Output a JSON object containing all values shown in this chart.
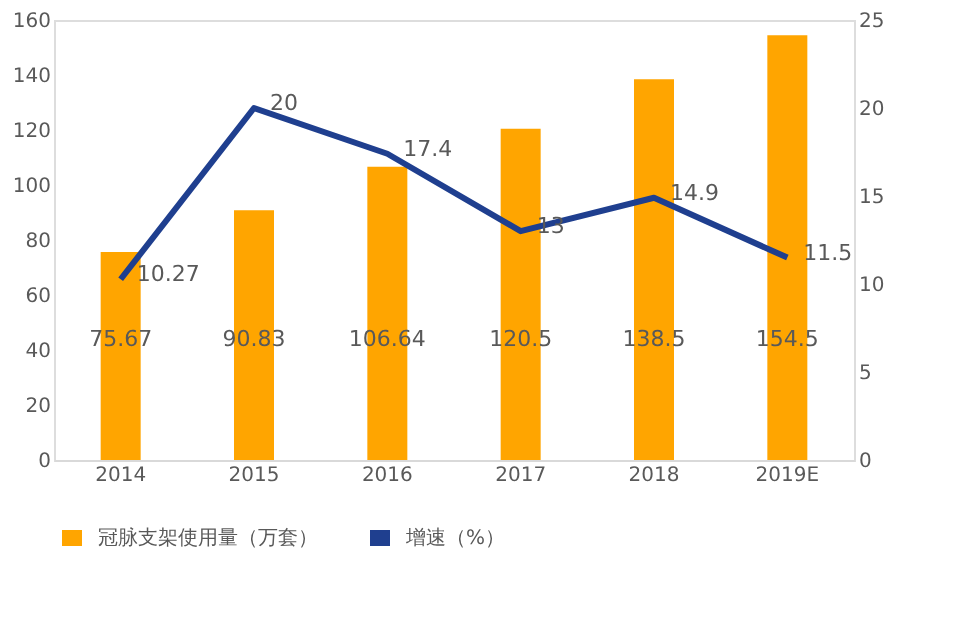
{
  "chart_data": {
    "type": "bar",
    "categories": [
      "2014",
      "2015",
      "2016",
      "2017",
      "2018",
      "2019E"
    ],
    "series": [
      {
        "name": "冠脉支架使用量（万套）",
        "color": "#ffa500",
        "values": [
          75.67,
          90.83,
          106.64,
          120.5,
          138.5,
          154.5
        ]
      },
      {
        "name": "增速（%）",
        "type": "line",
        "axis": "y2",
        "color": "#1f3f8f",
        "values": [
          10.27,
          20,
          17.4,
          13,
          14.9,
          11.5
        ]
      }
    ],
    "ylim": [
      0,
      160
    ],
    "yticks": [
      0,
      20,
      40,
      60,
      80,
      100,
      120,
      140,
      160
    ],
    "y2lim": [
      0,
      25
    ],
    "y2ticks": [
      0,
      5,
      10,
      15,
      20,
      25
    ],
    "data_labels": true,
    "grid": false,
    "legend": "bottom",
    "marker": "none",
    "line_style": "solid"
  }
}
